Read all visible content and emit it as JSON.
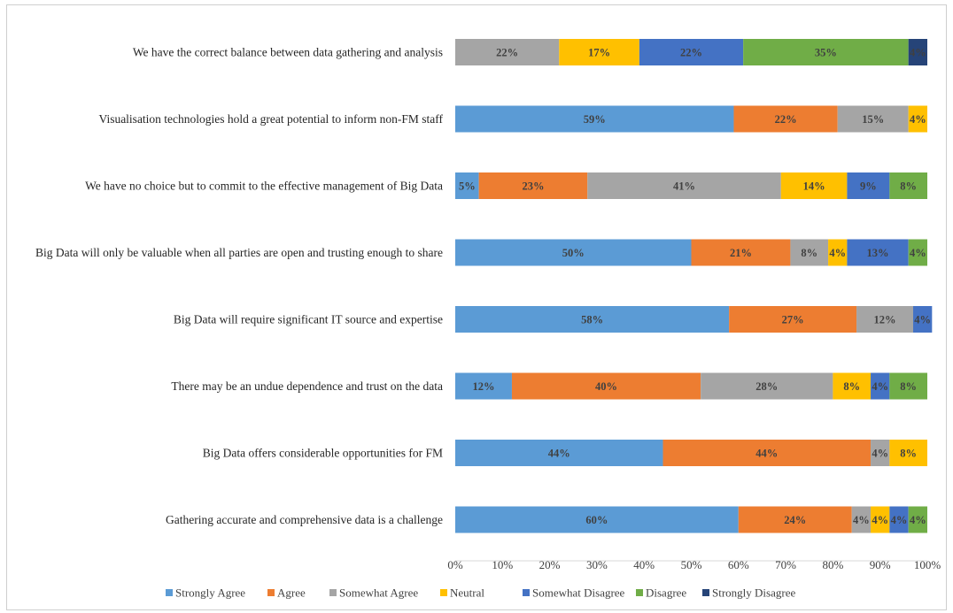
{
  "colors": {
    "Strongly Agree": "#5b9bd5",
    "Agree": "#ed7d31",
    "Somewhat Agree": "#a5a5a5",
    "Neutral": "#ffc000",
    "Somewhat Disagree": "#4472c4",
    "Disagree": "#70ad47",
    "Strongly Disagree": "#264478"
  },
  "chart_data": {
    "type": "bar",
    "orientation": "horizontal",
    "stacked": true,
    "title": "",
    "xlabel": "",
    "ylabel": "",
    "xlim": [
      0,
      100
    ],
    "x_ticks": [
      "0%",
      "10%",
      "20%",
      "30%",
      "40%",
      "50%",
      "60%",
      "70%",
      "80%",
      "90%",
      "100%"
    ],
    "grid": false,
    "legend_position": "bottom",
    "categories": [
      "We have the correct balance between data gathering and analysis",
      "Visualisation technologies hold a great potential to inform non-FM staff",
      "We have no choice but to commit to the effective management of Big Data",
      "Big Data will only be valuable when all parties are open and trusting enough to share",
      "Big Data will require significant IT source and expertise",
      "There may be an undue dependence and trust on the data",
      "Big Data offers considerable opportunities for FM",
      "Gathering accurate and comprehensive data is a challenge"
    ],
    "series": [
      {
        "name": "Strongly Agree",
        "values": [
          0,
          59,
          5,
          50,
          58,
          12,
          44,
          60
        ]
      },
      {
        "name": "Agree",
        "values": [
          0,
          22,
          23,
          21,
          27,
          40,
          44,
          24
        ]
      },
      {
        "name": "Somewhat Agree",
        "values": [
          22,
          15,
          41,
          8,
          12,
          28,
          4,
          4
        ]
      },
      {
        "name": "Neutral",
        "values": [
          17,
          4,
          14,
          4,
          0,
          8,
          8,
          4
        ]
      },
      {
        "name": "Somewhat Disagree",
        "values": [
          22,
          0,
          9,
          13,
          4,
          4,
          0,
          4
        ]
      },
      {
        "name": "Disagree",
        "values": [
          35,
          0,
          8,
          4,
          0,
          8,
          0,
          4
        ]
      },
      {
        "name": "Strongly Disagree",
        "values": [
          4,
          0,
          0,
          0,
          0,
          0,
          0,
          0
        ]
      }
    ]
  }
}
